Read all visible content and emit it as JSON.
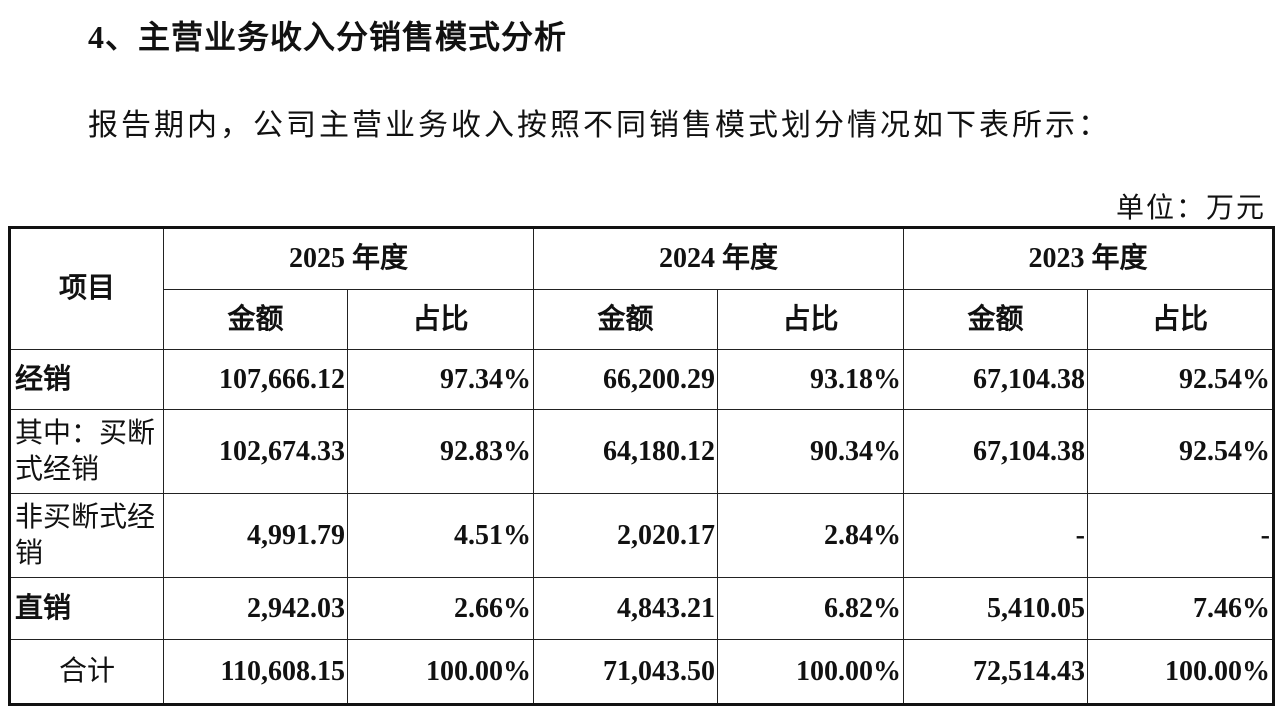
{
  "heading": "4、主营业务收入分销售模式分析",
  "paragraph": "报告期内，公司主营业务收入按照不同销售模式划分情况如下表所示：",
  "unit": "单位：万元",
  "table": {
    "item_header": "项目",
    "years": [
      "2025 年度",
      "2024 年度",
      "2023 年度"
    ],
    "subheaders": [
      "金额",
      "占比",
      "金额",
      "占比",
      "金额",
      "占比"
    ],
    "rows": [
      [
        "经销",
        "107,666.12",
        "97.34%",
        "66,200.29",
        "93.18%",
        "67,104.38",
        "92.54%"
      ],
      [
        "其中：买断式经销",
        "102,674.33",
        "92.83%",
        "64,180.12",
        "90.34%",
        "67,104.38",
        "92.54%"
      ],
      [
        "非买断式经销",
        "4,991.79",
        "4.51%",
        "2,020.17",
        "2.84%",
        "-",
        "-"
      ],
      [
        "直销",
        "2,942.03",
        "2.66%",
        "4,843.21",
        "6.82%",
        "5,410.05",
        "7.46%"
      ],
      [
        "合计",
        "110,608.15",
        "100.00%",
        "71,043.50",
        "100.00%",
        "72,514.43",
        "100.00%"
      ]
    ]
  }
}
